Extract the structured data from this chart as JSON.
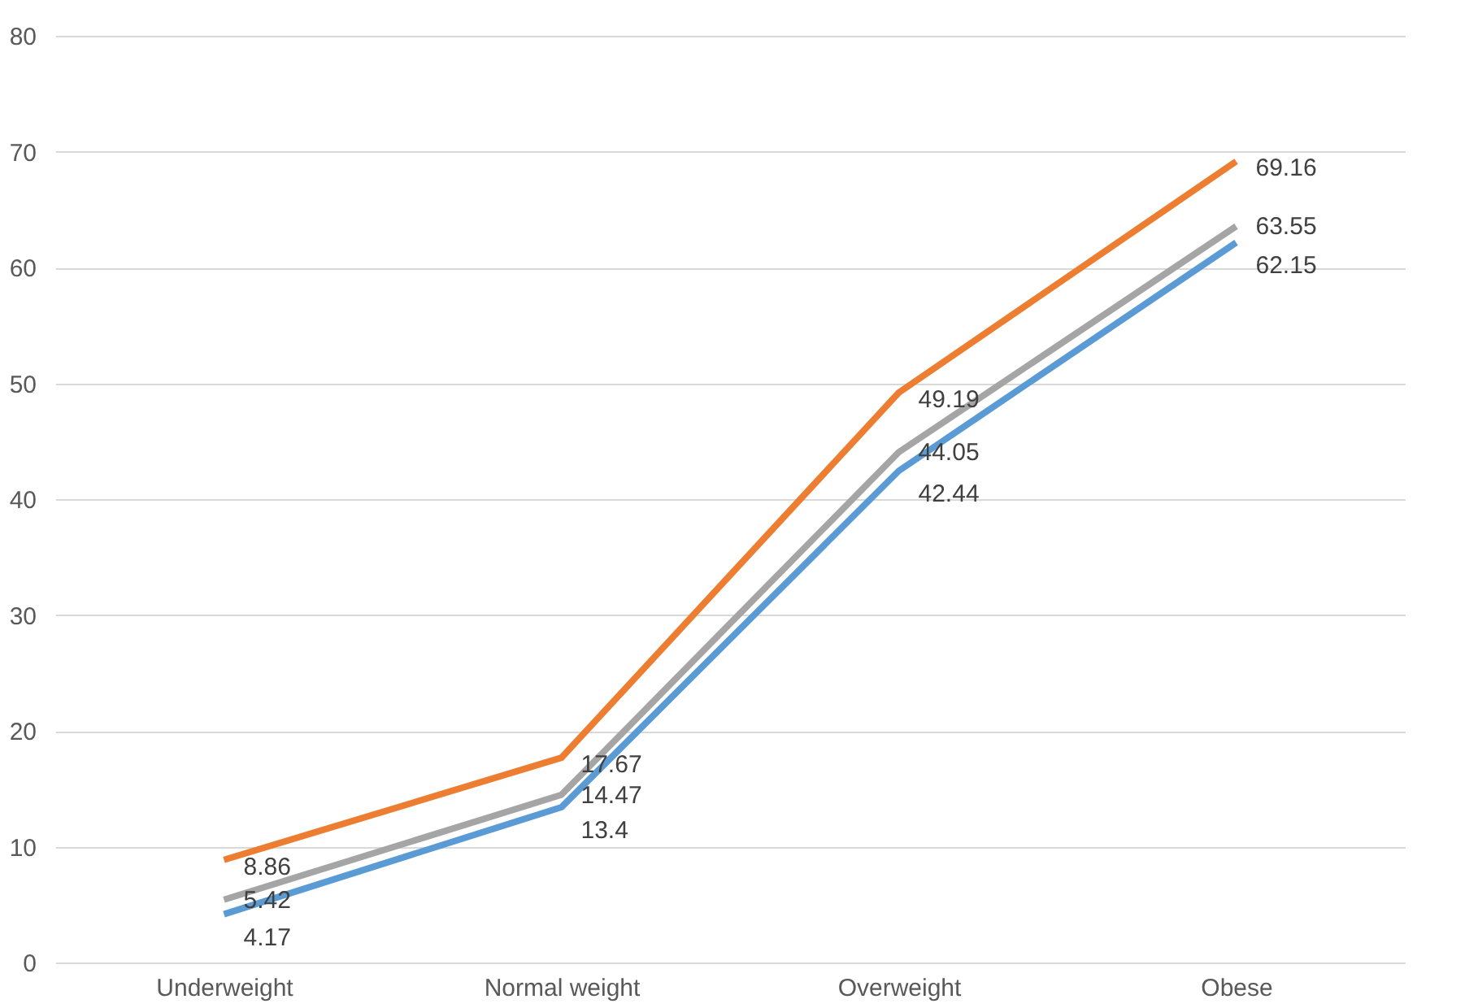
{
  "chart_data": {
    "type": "line",
    "categories": [
      "Underweight",
      "Normal weight",
      "Overweight",
      "Obese"
    ],
    "series": [
      {
        "color": "#ed7d31",
        "values": [
          8.86,
          17.67,
          49.19,
          69.16
        ]
      },
      {
        "color": "#a5a5a5",
        "values": [
          5.42,
          14.47,
          44.05,
          63.55
        ]
      },
      {
        "color": "#5b9bd5",
        "values": [
          4.17,
          13.4,
          42.44,
          62.15
        ]
      }
    ],
    "ylim": [
      0,
      80
    ],
    "yticks": [
      0,
      10,
      20,
      30,
      40,
      50,
      60,
      70,
      80
    ],
    "grid": "y",
    "legend": false,
    "marker": "none",
    "line_style": "solid",
    "data_labels": true
  }
}
